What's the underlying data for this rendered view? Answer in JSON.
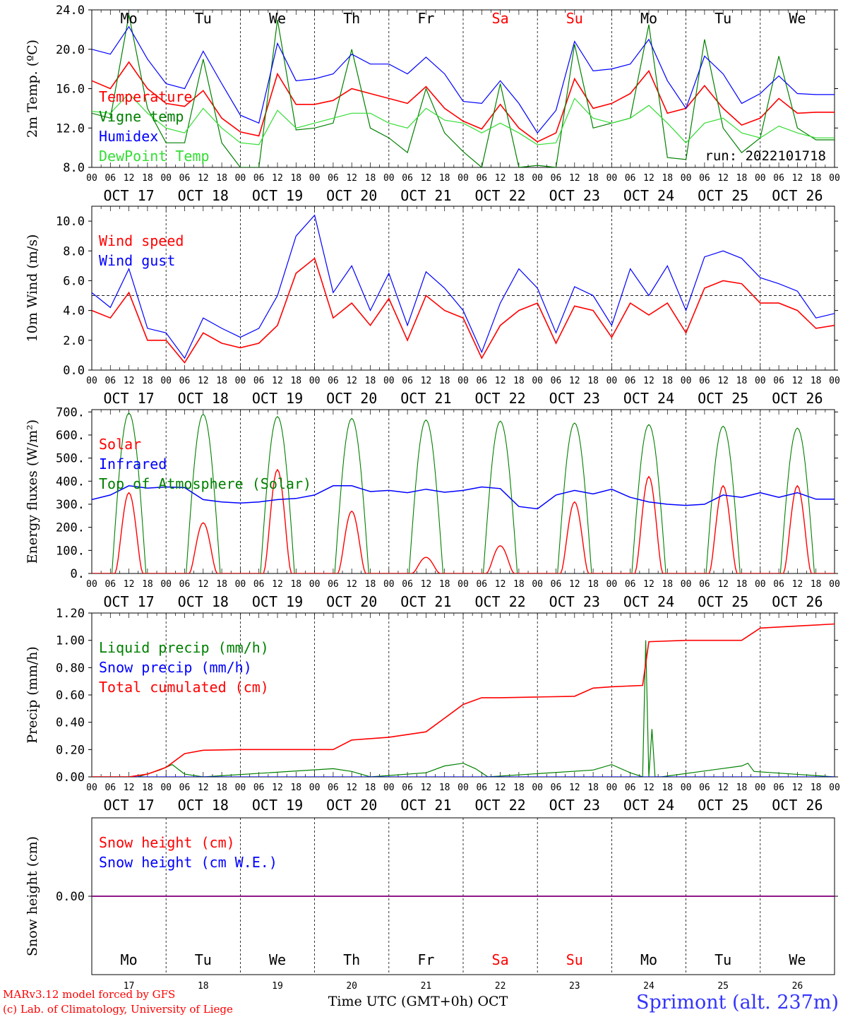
{
  "colors": {
    "red": "#ff0000",
    "green": "#008000",
    "light_green": "#33dd33",
    "blue": "#0000ff",
    "purple": "#800080",
    "weekend": "#ff0000",
    "footer_blue": "#3333ff"
  },
  "days": [
    {
      "abbr": "Mo",
      "num": "17",
      "date": "OCT 17",
      "weekend": false
    },
    {
      "abbr": "Tu",
      "num": "18",
      "date": "OCT 18",
      "weekend": false
    },
    {
      "abbr": "We",
      "num": "19",
      "date": "OCT 19",
      "weekend": false
    },
    {
      "abbr": "Th",
      "num": "20",
      "date": "OCT 20",
      "weekend": false
    },
    {
      "abbr": "Fr",
      "num": "21",
      "date": "OCT 21",
      "weekend": false
    },
    {
      "abbr": "Sa",
      "num": "22",
      "date": "OCT 22",
      "weekend": true
    },
    {
      "abbr": "Su",
      "num": "23",
      "date": "OCT 23",
      "weekend": true
    },
    {
      "abbr": "Mo",
      "num": "24",
      "date": "OCT 24",
      "weekend": false
    },
    {
      "abbr": "Tu",
      "num": "25",
      "date": "OCT 25",
      "weekend": false
    },
    {
      "abbr": "We",
      "num": "26",
      "date": "OCT 26",
      "weekend": false
    }
  ],
  "hour_ticks": [
    "00",
    "06",
    "12",
    "18"
  ],
  "footer": {
    "model_line": "MARv3.12 model forced by GFS",
    "lab_line": "(c) Lab. of Climatology, University of Liege",
    "time_label": "Time UTC (GMT+0h) OCT",
    "station": "Sprimont (alt. 237m)"
  },
  "chart_data": [
    {
      "type": "line",
      "ylabel": "2m Temp. (ºC)",
      "ylim": [
        8,
        24
      ],
      "yticks": [
        "8.0",
        "12.0",
        "16.0",
        "20.0",
        "24.0"
      ],
      "annotation": "run: 2022101718",
      "x_unit": "hours since OCT 17 00 UTC",
      "series": [
        {
          "name": "Temperature",
          "color": "red",
          "x": [
            0,
            6,
            12,
            18,
            24,
            30,
            36,
            42,
            48,
            54,
            60,
            66,
            72,
            78,
            84,
            90,
            96,
            102,
            108,
            114,
            120,
            126,
            132,
            138,
            144,
            150,
            156,
            162,
            168,
            174,
            180,
            186,
            192,
            198,
            204,
            210,
            216,
            222,
            228,
            234,
            240
          ],
          "y": [
            16.8,
            16.0,
            18.7,
            16.0,
            14.5,
            14.2,
            15.8,
            13.0,
            11.6,
            11.2,
            17.5,
            14.4,
            14.4,
            14.8,
            16.0,
            15.5,
            15.0,
            14.5,
            16.2,
            14.0,
            12.7,
            11.9,
            14.4,
            12.0,
            10.6,
            11.5,
            17.0,
            14.0,
            14.5,
            15.5,
            17.8,
            13.5,
            14.0,
            16.3,
            14.0,
            12.3,
            13.0,
            15.0,
            13.5,
            13.6,
            13.6
          ]
        },
        {
          "name": "Vigne temp",
          "color": "green",
          "x": [
            0,
            6,
            12,
            18,
            24,
            30,
            36,
            42,
            48,
            54,
            60,
            66,
            72,
            78,
            84,
            90,
            96,
            102,
            108,
            114,
            120,
            126,
            132,
            138,
            144,
            150,
            156,
            162,
            168,
            174,
            180,
            186,
            192,
            198,
            204,
            210,
            216,
            222,
            228,
            234,
            240
          ],
          "y": [
            13.5,
            13.0,
            23.5,
            14.0,
            10.5,
            10.5,
            19.0,
            10.5,
            8.0,
            8.0,
            23.0,
            11.8,
            12.0,
            12.5,
            20.0,
            12.0,
            11.0,
            9.5,
            16.0,
            11.5,
            9.6,
            8.0,
            16.5,
            8.0,
            8.2,
            8.0,
            20.5,
            12.0,
            12.5,
            13.0,
            22.5,
            9.0,
            8.8,
            21.0,
            12.0,
            9.5,
            11.0,
            19.3,
            12.0,
            10.8,
            10.8
          ]
        },
        {
          "name": "Humidex",
          "color": "blue",
          "x": [
            0,
            6,
            12,
            18,
            24,
            30,
            36,
            42,
            48,
            54,
            60,
            66,
            72,
            78,
            84,
            90,
            96,
            102,
            108,
            114,
            120,
            126,
            132,
            138,
            144,
            150,
            156,
            162,
            168,
            174,
            180,
            186,
            192,
            198,
            204,
            210,
            216,
            222,
            228,
            234,
            240
          ],
          "y": [
            20.0,
            19.5,
            22.3,
            19.0,
            16.5,
            16.0,
            19.8,
            16.5,
            13.3,
            12.5,
            20.6,
            16.8,
            17.0,
            17.5,
            19.5,
            18.5,
            18.5,
            17.5,
            19.2,
            17.5,
            14.7,
            14.5,
            16.8,
            14.5,
            11.5,
            13.8,
            20.8,
            17.8,
            18.0,
            18.5,
            21.0,
            16.8,
            14.0,
            19.3,
            17.5,
            14.5,
            15.5,
            17.3,
            15.5,
            15.4,
            15.4
          ]
        },
        {
          "name": "DewPoint Temp",
          "color": "light_green",
          "x": [
            0,
            6,
            12,
            18,
            24,
            30,
            36,
            42,
            48,
            54,
            60,
            66,
            72,
            78,
            84,
            90,
            96,
            102,
            108,
            114,
            120,
            126,
            132,
            138,
            144,
            150,
            156,
            162,
            168,
            174,
            180,
            186,
            192,
            198,
            204,
            210,
            216,
            222,
            228,
            234,
            240
          ],
          "y": [
            13.7,
            13.5,
            15.5,
            13.5,
            12.0,
            11.5,
            14.0,
            12.0,
            10.5,
            10.3,
            13.8,
            12.0,
            12.5,
            13.0,
            13.5,
            13.5,
            12.5,
            12.0,
            14.0,
            12.8,
            12.5,
            11.5,
            12.5,
            11.5,
            10.3,
            10.5,
            15.0,
            13.0,
            12.5,
            13.0,
            14.3,
            12.5,
            10.5,
            12.5,
            13.0,
            11.5,
            11.0,
            12.2,
            11.5,
            11.0,
            11.0
          ]
        }
      ]
    },
    {
      "type": "line",
      "ylabel": "10m Wind (m/s)",
      "ylim": [
        0,
        11
      ],
      "yticks": [
        "0.0",
        "2.0",
        "4.0",
        "6.0",
        "8.0",
        "10.0"
      ],
      "reference_line": 5.0,
      "x_unit": "hours since OCT 17 00 UTC",
      "series": [
        {
          "name": "Wind speed",
          "color": "red",
          "x": [
            0,
            6,
            12,
            18,
            24,
            30,
            36,
            42,
            48,
            54,
            60,
            66,
            72,
            78,
            84,
            90,
            96,
            102,
            108,
            114,
            120,
            126,
            132,
            138,
            144,
            150,
            156,
            162,
            168,
            174,
            180,
            186,
            192,
            198,
            204,
            210,
            216,
            222,
            228,
            234,
            240
          ],
          "y": [
            4.0,
            3.5,
            5.2,
            2.0,
            2.0,
            0.5,
            2.5,
            1.8,
            1.5,
            1.8,
            3.0,
            6.5,
            7.5,
            3.5,
            4.5,
            3.0,
            4.8,
            2.0,
            5.0,
            4.0,
            3.5,
            0.8,
            3.0,
            4.0,
            4.5,
            1.8,
            4.3,
            4.0,
            2.2,
            4.5,
            3.7,
            4.5,
            2.5,
            5.5,
            6.0,
            5.8,
            4.5,
            4.5,
            4.0,
            2.8,
            3.0
          ]
        },
        {
          "name": "Wind gust",
          "color": "blue",
          "x": [
            0,
            6,
            12,
            18,
            24,
            30,
            36,
            42,
            48,
            54,
            60,
            66,
            72,
            78,
            84,
            90,
            96,
            102,
            108,
            114,
            120,
            126,
            132,
            138,
            144,
            150,
            156,
            162,
            168,
            174,
            180,
            186,
            192,
            198,
            204,
            210,
            216,
            222,
            228,
            234,
            240
          ],
          "y": [
            5.2,
            4.2,
            6.8,
            2.8,
            2.5,
            0.8,
            3.5,
            2.8,
            2.2,
            2.8,
            5.0,
            9.0,
            10.4,
            5.2,
            7.0,
            4.0,
            6.5,
            3.0,
            6.6,
            5.5,
            4.0,
            1.2,
            4.5,
            6.8,
            5.5,
            2.5,
            5.6,
            5.0,
            3.0,
            6.8,
            5.0,
            7.0,
            4.0,
            7.6,
            8.0,
            7.5,
            6.2,
            5.8,
            5.3,
            3.5,
            3.8
          ]
        }
      ]
    },
    {
      "type": "line",
      "ylabel": "Energy fluxes (W/m²)",
      "ylim": [
        0,
        710
      ],
      "yticks": [
        "0.",
        "100.",
        "200.",
        "300.",
        "400.",
        "500.",
        "600.",
        "700."
      ],
      "solar_peaks": [
        350,
        220,
        450,
        270,
        70,
        120,
        310,
        420,
        380,
        380
      ],
      "toa_peaks": [
        695,
        690,
        680,
        672,
        665,
        660,
        652,
        645,
        638,
        630
      ],
      "x_unit": "hours since OCT 17 00 UTC",
      "series": [
        {
          "name": "Solar",
          "color": "red"
        },
        {
          "name": "Infrared",
          "color": "blue",
          "x": [
            0,
            6,
            12,
            18,
            24,
            30,
            36,
            42,
            48,
            54,
            60,
            66,
            72,
            78,
            84,
            90,
            96,
            102,
            108,
            114,
            120,
            126,
            132,
            138,
            144,
            150,
            156,
            162,
            168,
            174,
            180,
            186,
            192,
            198,
            204,
            210,
            216,
            222,
            228,
            234,
            240
          ],
          "y": [
            320,
            340,
            380,
            370,
            375,
            372,
            320,
            310,
            305,
            310,
            320,
            325,
            340,
            380,
            380,
            355,
            360,
            350,
            365,
            352,
            360,
            375,
            368,
            290,
            280,
            340,
            360,
            345,
            365,
            330,
            310,
            300,
            295,
            300,
            340,
            330,
            350,
            330,
            350,
            322,
            322
          ]
        },
        {
          "name": "Top of Atmosphere (Solar)",
          "color": "green"
        }
      ]
    },
    {
      "type": "line",
      "ylabel": "Precip (mm/h)",
      "ylim": [
        0,
        1.2
      ],
      "yticks": [
        "0.00",
        "0.20",
        "0.40",
        "0.60",
        "0.80",
        "1.00",
        "1.20"
      ],
      "x_unit": "hours since OCT 17 00 UTC",
      "series": [
        {
          "name": "Liquid precip (mm/h)",
          "color": "green",
          "x": [
            0,
            15,
            22,
            26,
            30,
            36,
            78,
            84,
            90,
            108,
            114,
            120,
            124,
            128,
            162,
            168,
            174,
            178,
            179,
            180,
            181,
            182,
            183,
            184,
            210,
            212,
            214,
            240
          ],
          "y": [
            0.0,
            0.0,
            0.05,
            0.09,
            0.02,
            0.0,
            0.06,
            0.04,
            0.0,
            0.03,
            0.08,
            0.1,
            0.06,
            0.0,
            0.05,
            0.09,
            0.03,
            0.0,
            1.0,
            0.0,
            0.35,
            0.0,
            0.0,
            0.0,
            0.08,
            0.1,
            0.04,
            0.0
          ]
        },
        {
          "name": "Snow precip (mm/h)",
          "color": "blue",
          "x": [
            0,
            240
          ],
          "y": [
            0,
            0
          ]
        },
        {
          "name": "Total cumulated (cm)",
          "color": "red",
          "x": [
            0,
            12,
            18,
            24,
            30,
            36,
            48,
            72,
            78,
            84,
            96,
            108,
            114,
            120,
            126,
            132,
            144,
            156,
            162,
            168,
            178,
            180,
            192,
            204,
            210,
            216,
            240
          ],
          "y": [
            0.0,
            0.0,
            0.02,
            0.07,
            0.17,
            0.195,
            0.2,
            0.2,
            0.2,
            0.27,
            0.29,
            0.33,
            0.43,
            0.53,
            0.58,
            0.58,
            0.585,
            0.59,
            0.65,
            0.66,
            0.67,
            0.99,
            1.0,
            1.0,
            1.0,
            1.09,
            1.12
          ]
        }
      ]
    },
    {
      "type": "line",
      "ylabel": "Snow height (cm)",
      "ylim": [
        -0.5,
        0.5
      ],
      "yticks": [
        "0.00"
      ],
      "x_unit": "hours since OCT 17 00 UTC",
      "series": [
        {
          "name": "Snow height (cm)",
          "color": "red",
          "x": [
            0,
            240
          ],
          "y": [
            0,
            0
          ]
        },
        {
          "name": "Snow height (cm W.E.)",
          "color": "blue",
          "x": [
            0,
            240
          ],
          "y": [
            0,
            0
          ]
        }
      ]
    }
  ]
}
